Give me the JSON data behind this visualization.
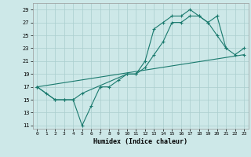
{
  "xlabel": "Humidex (Indice chaleur)",
  "xlim": [
    -0.5,
    23.5
  ],
  "ylim": [
    10.5,
    30
  ],
  "yticks": [
    11,
    13,
    15,
    17,
    19,
    21,
    23,
    25,
    27,
    29
  ],
  "xticks": [
    0,
    1,
    2,
    3,
    4,
    5,
    6,
    7,
    8,
    9,
    10,
    11,
    12,
    13,
    14,
    15,
    16,
    17,
    18,
    19,
    20,
    21,
    22,
    23
  ],
  "bg_color": "#cde8e8",
  "grid_color": "#aacece",
  "line_color": "#1a7a6e",
  "line1_x": [
    0,
    1,
    2,
    3,
    4,
    5,
    6,
    7,
    8,
    9,
    10,
    11,
    12,
    13,
    14,
    15,
    16,
    17,
    18,
    19,
    20,
    21
  ],
  "line1_y": [
    17,
    16,
    15,
    15,
    15,
    11,
    14,
    17,
    17,
    18,
    19,
    19,
    21,
    26,
    27,
    28,
    28,
    29,
    28,
    27,
    25,
    23
  ],
  "line2_x": [
    0,
    23
  ],
  "line2_y": [
    17,
    22
  ],
  "line3_x": [
    0,
    2,
    3,
    4,
    5,
    10,
    11,
    12,
    13,
    14,
    15,
    16,
    17,
    18,
    19,
    20,
    21,
    22,
    23
  ],
  "line3_y": [
    17,
    15,
    15,
    15,
    16,
    19,
    19,
    20,
    22,
    24,
    27,
    27,
    28,
    28,
    27,
    28,
    23,
    22,
    23
  ]
}
